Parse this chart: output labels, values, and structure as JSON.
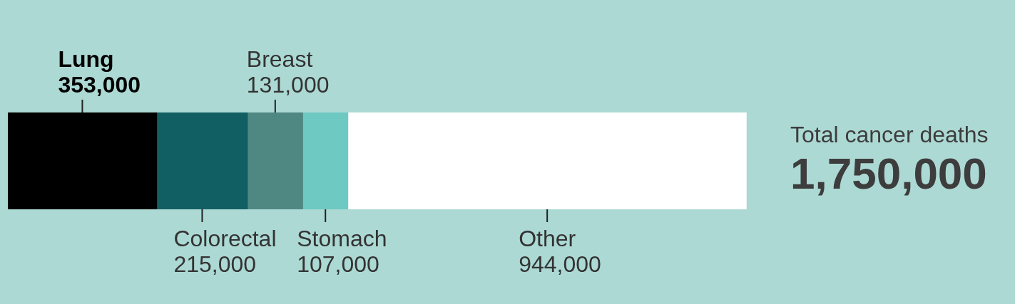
{
  "chart_data": {
    "type": "bar",
    "orientation": "horizontal",
    "stacked": true,
    "categories": [
      null
    ],
    "series": [
      {
        "name": "Lung",
        "color": "#000000",
        "values": [
          353000
        ],
        "value_labels": [
          "353,000"
        ]
      },
      {
        "name": "Colorectal",
        "color": "#125f63",
        "values": [
          215000
        ],
        "value_labels": [
          "215,000"
        ]
      },
      {
        "name": "Breast",
        "color": "#4f8783",
        "values": [
          131000
        ],
        "value_labels": [
          "131,000"
        ]
      },
      {
        "name": "Stomach",
        "color": "#6ec9c2",
        "values": [
          107000
        ],
        "value_labels": [
          "107,000"
        ]
      },
      {
        "name": "Other",
        "color": "#ffffff",
        "values": [
          944000
        ],
        "value_labels": [
          "944,000"
        ]
      }
    ],
    "tick_labels": false,
    "legend": false,
    "totals": [
      "1,750,000"
    ],
    "annotations": [
      "Total cancer deaths"
    ]
  }
}
